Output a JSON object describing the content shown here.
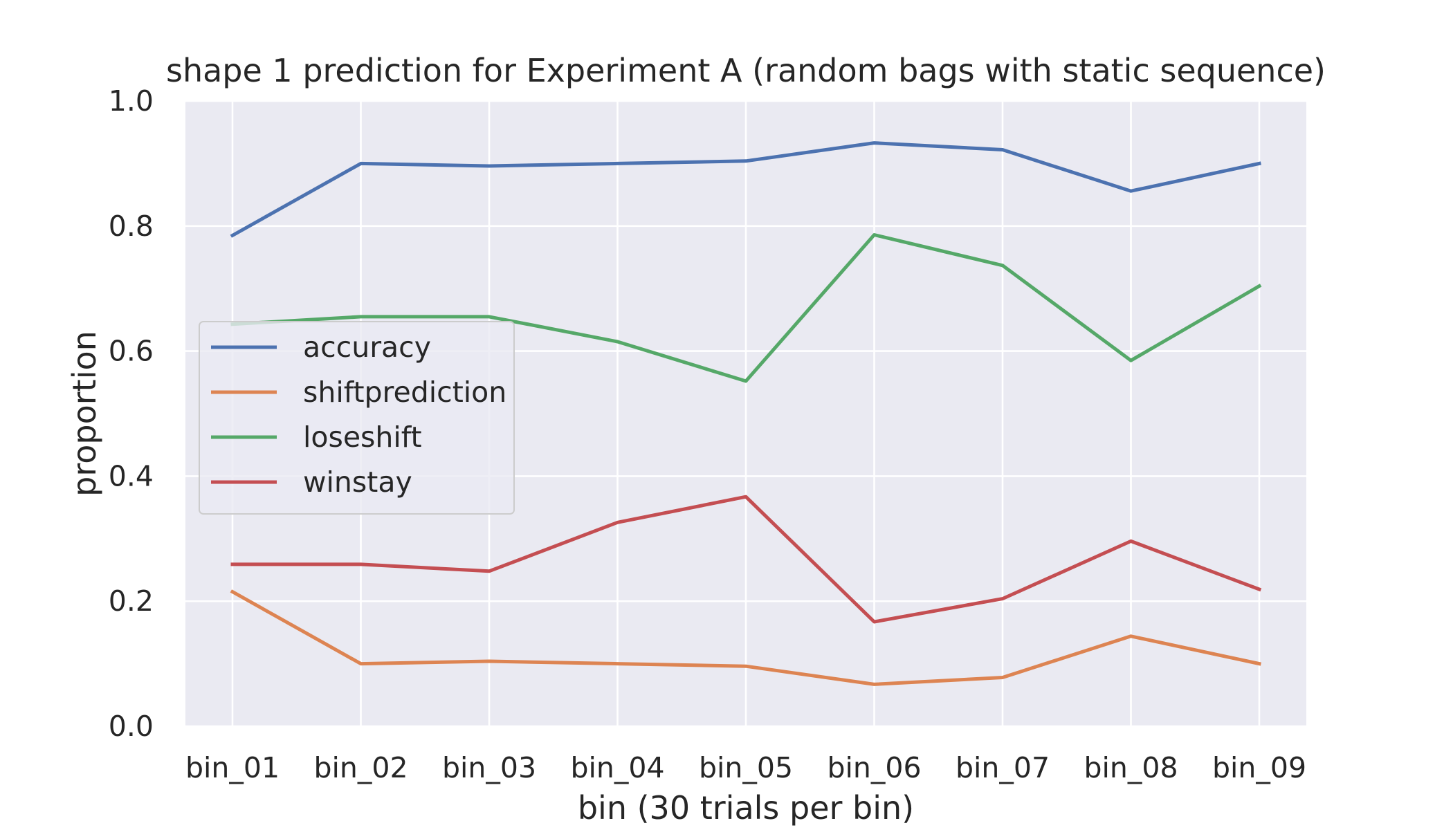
{
  "chart_data": {
    "type": "line",
    "title": "shape 1 prediction for Experiment A (random bags with static sequence)",
    "xlabel": "bin (30 trials per bin)",
    "ylabel": "proportion",
    "categories": [
      "bin_01",
      "bin_02",
      "bin_03",
      "bin_04",
      "bin_05",
      "bin_06",
      "bin_07",
      "bin_08",
      "bin_09"
    ],
    "ylim": [
      0.0,
      1.0
    ],
    "yticks": [
      "0.0",
      "0.2",
      "0.4",
      "0.6",
      "0.8",
      "1.0"
    ],
    "grid": true,
    "legend_position": "center-left",
    "series": [
      {
        "name": "accuracy",
        "color": "#4c72b0",
        "values": [
          0.785,
          0.9,
          0.896,
          0.9,
          0.904,
          0.933,
          0.922,
          0.856,
          0.9
        ]
      },
      {
        "name": "shiftprediction",
        "color": "#dd8452",
        "values": [
          0.215,
          0.1,
          0.104,
          0.1,
          0.096,
          0.067,
          0.078,
          0.144,
          0.1
        ]
      },
      {
        "name": "loseshift",
        "color": "#55a868",
        "values": [
          0.643,
          0.655,
          0.655,
          0.615,
          0.552,
          0.786,
          0.737,
          0.585,
          0.704
        ]
      },
      {
        "name": "winstay",
        "color": "#c44e52",
        "values": [
          0.259,
          0.259,
          0.248,
          0.326,
          0.367,
          0.167,
          0.204,
          0.296,
          0.219
        ]
      }
    ]
  }
}
